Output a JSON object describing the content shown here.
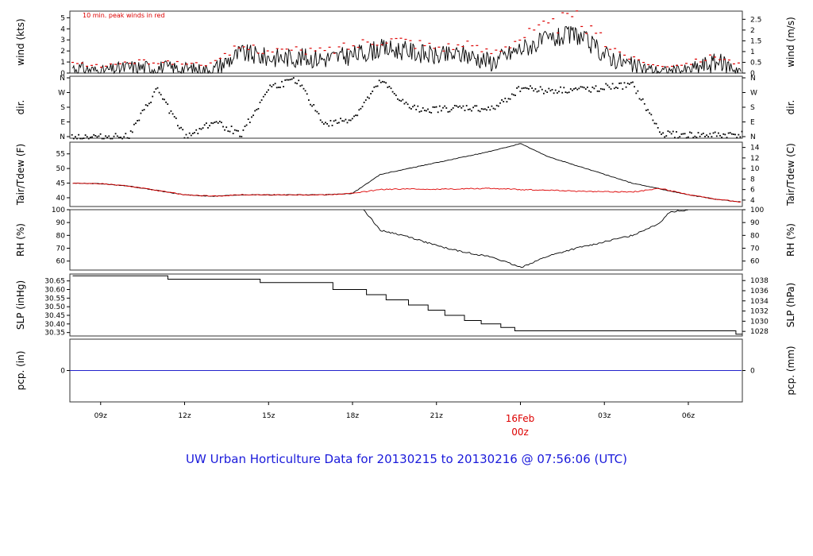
{
  "chart_data": {
    "type": "line",
    "title": "UW Urban Horticulture Data for 20130215  to  20130216 @ 07:56:06  (UTC)",
    "annotation": "10 min. peak winds in red",
    "x_axis": {
      "tick_labels": [
        "09z",
        "12z",
        "15z",
        "18z",
        "21z",
        "16Feb",
        "03z",
        "06z"
      ],
      "day_marker": {
        "date": "16Feb",
        "time": "00z"
      },
      "range_utc_hours": [
        7.9,
        31.93
      ]
    },
    "panels": [
      {
        "key": "wind",
        "ylabel_left": "wind (kts)",
        "ylabel_right": "wind (m/s)",
        "left_ticks": [
          "0",
          "1",
          "2",
          "3",
          "4",
          "5"
        ],
        "right_ticks": [
          "0",
          "0.5",
          "1",
          "1.5",
          "2",
          "2.5"
        ],
        "ylim": [
          0,
          5.6
        ],
        "series": [
          {
            "color": "#000000",
            "style": "line",
            "x_hours": [
              8,
              9,
              10,
              11,
              12,
              13,
              14,
              15,
              16,
              17,
              18,
              19,
              20,
              21,
              22,
              23,
              24,
              25,
              26,
              27,
              28,
              29,
              30,
              31,
              31.9
            ],
            "values": [
              0.5,
              0.2,
              0.5,
              0.5,
              0.4,
              0.3,
              1.8,
              1.4,
              1.4,
              1.3,
              1.6,
              2.2,
              2.0,
              1.5,
              1.7,
              1.0,
              2.2,
              3.0,
              3.5,
              1.7,
              0.6,
              0.2,
              0.3,
              1.0,
              0.3
            ]
          },
          {
            "color": "#dd0000",
            "style": "points",
            "x_hours": [
              8,
              9,
              10,
              11,
              12,
              13,
              14,
              15,
              16,
              17,
              18,
              19,
              20,
              21,
              22,
              23,
              24,
              25,
              26,
              27,
              28,
              29,
              30,
              31,
              31.9
            ],
            "values": [
              0.9,
              0.6,
              1.0,
              1.0,
              0.9,
              0.8,
              2.4,
              2.1,
              2.0,
              2.0,
              2.5,
              3.2,
              2.9,
              2.4,
              2.5,
              1.9,
              3.3,
              4.2,
              4.9,
              2.8,
              1.3,
              0.6,
              0.9,
              1.6,
              0.7
            ]
          }
        ]
      },
      {
        "key": "dir",
        "ylabel_left": "dir.",
        "ylabel_right": "dir.",
        "left_ticks": [
          "N",
          "E",
          "S",
          "W",
          "N"
        ],
        "right_ticks": [
          "N",
          "E",
          "S",
          "W",
          "N"
        ],
        "ylim": [
          0,
          360
        ],
        "series": [
          {
            "color": "#000000",
            "style": "points",
            "x_hours": [
              8,
              9,
              10,
              11,
              12,
              13,
              14,
              15,
              16,
              17,
              18,
              19,
              20,
              21,
              22,
              23,
              24,
              25,
              26,
              27,
              28,
              29,
              30,
              31,
              31.9
            ],
            "values": [
              15,
              10,
              20,
              290,
              10,
              100,
              30,
              300,
              340,
              80,
              120,
              335,
              180,
              170,
              180,
              170,
              300,
              280,
              285,
              300,
              310,
              30,
              20,
              20,
              25
            ]
          }
        ]
      },
      {
        "key": "temp",
        "ylabel_left": "Tair/Tdew (F)",
        "ylabel_right": "Tair/Tdew (C)",
        "left_ticks": [
          "40",
          "45",
          "50",
          "55"
        ],
        "right_ticks": [
          "4",
          "6",
          "8",
          "10",
          "12",
          "14"
        ],
        "ylim": [
          37,
          59
        ],
        "series": [
          {
            "color": "#000000",
            "style": "line",
            "x_hours": [
              8,
              9,
              10,
              11,
              12,
              13,
              14,
              15,
              16,
              17,
              18,
              19,
              20,
              21,
              22,
              23,
              24,
              25,
              26,
              27,
              28,
              29,
              30,
              31,
              31.9
            ],
            "values": [
              45,
              44.8,
              44,
              42.5,
              41,
              40.5,
              41,
              41,
              41,
              41,
              41.5,
              48,
              50,
              52,
              54,
              56,
              58.5,
              54,
              51,
              48,
              45,
              43,
              41,
              39.5,
              38.5
            ]
          },
          {
            "color": "#dd0000",
            "style": "line",
            "x_hours": [
              8,
              9,
              10,
              11,
              12,
              13,
              14,
              15,
              16,
              17,
              18,
              19,
              20,
              21,
              22,
              23,
              24,
              25,
              26,
              27,
              28,
              29,
              30,
              31,
              31.9
            ],
            "values": [
              45,
              44.8,
              44,
              42.5,
              41,
              40.5,
              41,
              41,
              41,
              41,
              41.5,
              42.8,
              43,
              42.9,
              43.1,
              43.2,
              42.8,
              42.6,
              42.2,
              42.1,
              42,
              43.2,
              41,
              39.5,
              38.5
            ]
          }
        ]
      },
      {
        "key": "rh",
        "ylabel_left": "RH (%)",
        "ylabel_right": "RH (%)",
        "left_ticks": [
          "60",
          "70",
          "80",
          "90",
          "100"
        ],
        "right_ticks": [
          "60",
          "70",
          "80",
          "90",
          "100"
        ],
        "ylim": [
          53,
          100
        ],
        "series": [
          {
            "color": "#000000",
            "style": "line",
            "x_hours": [
              18.4,
              19,
              20,
              21,
              22,
              23,
              24,
              25,
              26,
              27,
              28,
              29,
              29.3,
              30
            ],
            "values": [
              100,
              84,
              79,
              72,
              67,
              63,
              55,
              64,
              70,
              75,
              80,
              90,
              98,
              100
            ]
          }
        ]
      },
      {
        "key": "slp",
        "ylabel_left": "SLP (inHg)",
        "ylabel_right": "SLP (hPa)",
        "left_ticks": [
          "30.35",
          "30.40",
          "30.45",
          "30.50",
          "30.55",
          "30.60",
          "30.65"
        ],
        "right_ticks": [
          "1028",
          "1030",
          "1032",
          "1034",
          "1036",
          "1038"
        ],
        "ylim": [
          30.33,
          30.69
        ],
        "series": [
          {
            "color": "#000000",
            "style": "step",
            "x_hours": [
              8,
              11.4,
              14.7,
              17.3,
              18.5,
              19.2,
              20.0,
              20.7,
              21.3,
              22.0,
              22.6,
              23.3,
              23.8,
              31.7,
              31.9
            ],
            "values": [
              30.68,
              30.66,
              30.64,
              30.6,
              30.57,
              30.54,
              30.51,
              30.48,
              30.45,
              30.42,
              30.4,
              30.38,
              30.36,
              30.34,
              30.34
            ]
          }
        ]
      },
      {
        "key": "pcp",
        "ylabel_left": "pcp. (in)",
        "ylabel_right": "pcp. (mm)",
        "left_ticks": [
          "0"
        ],
        "right_ticks": [
          "0"
        ],
        "ylim": [
          -1,
          1
        ],
        "series": [
          {
            "color": "#2222cc",
            "style": "line",
            "x_hours": [
              7.9,
              31.93
            ],
            "values": [
              0,
              0
            ]
          }
        ]
      }
    ]
  }
}
